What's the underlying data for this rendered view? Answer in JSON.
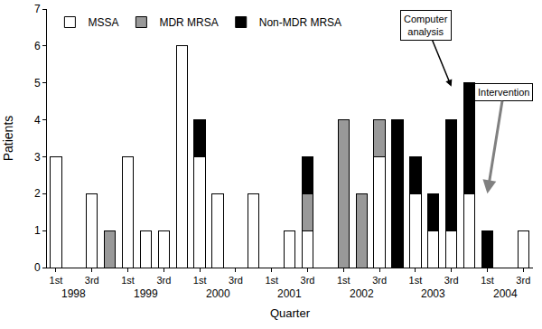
{
  "chart_data": {
    "type": "bar",
    "stacked": true,
    "x_title": "Quarter",
    "y_title": "Patients",
    "categories": [
      "1st",
      null,
      "3rd",
      null,
      "1st",
      null,
      "3rd",
      null,
      "1st",
      null,
      "3rd",
      null,
      "1st",
      null,
      "3rd",
      null,
      "1st",
      null,
      "3rd",
      null,
      "1st",
      null,
      "3rd",
      null,
      "1st",
      null,
      "3rd"
    ],
    "years": [
      "1998",
      "1998",
      "1998",
      "1998",
      "1999",
      "1999",
      "1999",
      "1999",
      "2000",
      "2000",
      "2000",
      "2000",
      "2001",
      "2001",
      "2001",
      "2001",
      "2002",
      "2002",
      "2002",
      "2002",
      "2003",
      "2003",
      "2003",
      "2003",
      "2004",
      "2004",
      "2004"
    ],
    "series": [
      {
        "name": "MSSA",
        "color": "#ffffff",
        "values": [
          3,
          0,
          2,
          0,
          3,
          1,
          1,
          6,
          3,
          2,
          0,
          2,
          0,
          1,
          1,
          0,
          0,
          0,
          3,
          0,
          2,
          1,
          1,
          2,
          0,
          0,
          1
        ]
      },
      {
        "name": "MDR MRSA",
        "color": "#999999",
        "values": [
          0,
          0,
          0,
          1,
          0,
          0,
          0,
          0,
          0,
          0,
          0,
          0,
          0,
          0,
          1,
          0,
          4,
          2,
          1,
          0,
          0,
          0,
          0,
          0,
          0,
          0,
          0
        ]
      },
      {
        "name": "Non-MDR MRSA",
        "color": "#000000",
        "values": [
          0,
          0,
          0,
          0,
          0,
          0,
          0,
          0,
          1,
          0,
          0,
          0,
          0,
          0,
          1,
          0,
          0,
          0,
          0,
          4,
          1,
          1,
          3,
          3,
          1,
          0,
          0
        ]
      }
    ],
    "ylim": [
      0,
      7
    ],
    "yticks": [
      0,
      1,
      2,
      3,
      4,
      5,
      6,
      7
    ],
    "grid": false,
    "legend": "top left",
    "annotations": [
      {
        "text": "Computer analysis",
        "x": 22,
        "y": 4.9
      },
      {
        "text": "Intervention",
        "x": 24,
        "y": 2
      }
    ]
  }
}
